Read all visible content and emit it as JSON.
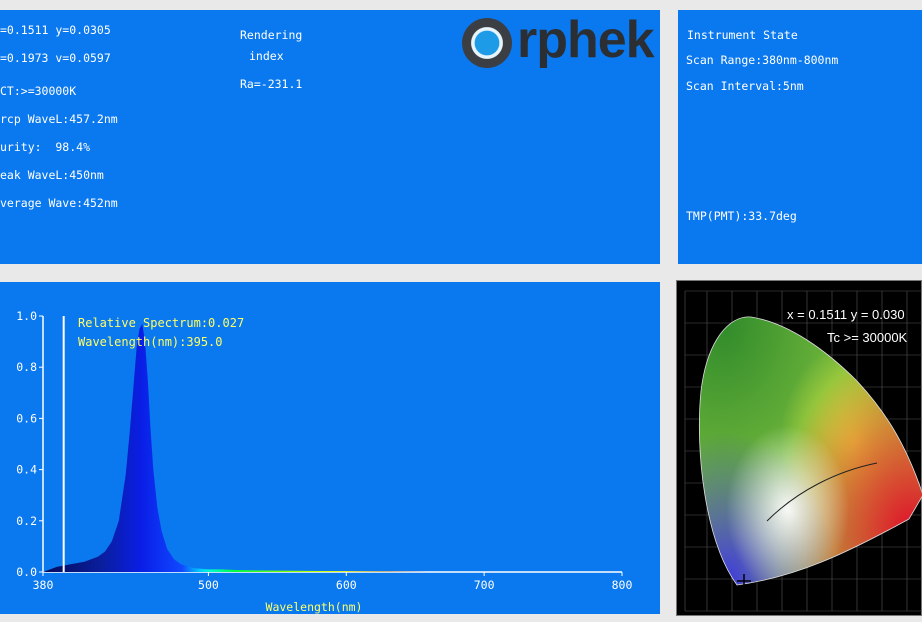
{
  "readout": {
    "xy": "=0.1511 y=0.0305",
    "uv": "=0.1973 v=0.0597",
    "cct": "CT:>=30000K",
    "dominant": "rcp WaveL:457.2nm",
    "purity": "urity:  98.4%",
    "peak": "eak WaveL:450nm",
    "average": "verage Wave:452nm",
    "rendering_label_1": "Rendering",
    "rendering_label_2": "index",
    "ra": "Ra=-231.1"
  },
  "logo": {
    "text": "rphek"
  },
  "instrument_state": {
    "title": "Instrument State",
    "scan_range": "Scan Range:380nm-800nm",
    "scan_interval": "Scan Interval:5nm",
    "temperature": "TMP(PMT):33.7deg"
  },
  "spectrum_panel": {
    "cursor_readout": "Relative Spectrum:0.027",
    "wavelength_readout": "Wavelength(nm):395.0"
  },
  "cie_panel": {
    "xy_text": "x = 0.1511 y = 0.030",
    "tc_text": "Tc >= 30000K"
  },
  "colors": {
    "panel_blue": "#0a78ef",
    "axis_white": "#ffffff",
    "readout_yellow": "#ffff66"
  },
  "chart_data": {
    "type": "area",
    "xlabel": "Wavelength(nm)",
    "ylabel": "",
    "xlim": [
      380,
      800
    ],
    "ylim": [
      0,
      1.0
    ],
    "x_ticks": [
      "380",
      "500",
      "600",
      "700",
      "800"
    ],
    "y_ticks": [
      "0.0",
      "0.2",
      "0.4",
      "0.6",
      "0.8",
      "1.0"
    ],
    "cursor_wavelength": 395.0,
    "series": [
      {
        "x": [
          380,
          390,
          400,
          410,
          420,
          425,
          430,
          435,
          440,
          443,
          446,
          448,
          450,
          452,
          454,
          456,
          458,
          460,
          463,
          466,
          470,
          475,
          480,
          490,
          500,
          510,
          520,
          540,
          560,
          580,
          600,
          620,
          640,
          660,
          700,
          750,
          800
        ],
        "values": [
          0.0,
          0.02,
          0.03,
          0.04,
          0.06,
          0.08,
          0.12,
          0.2,
          0.38,
          0.55,
          0.75,
          0.88,
          0.95,
          0.97,
          0.9,
          0.75,
          0.56,
          0.4,
          0.25,
          0.16,
          0.09,
          0.05,
          0.03,
          0.015,
          0.01,
          0.01,
          0.008,
          0.006,
          0.005,
          0.004,
          0.003,
          0.002,
          0.001,
          0.0,
          0.0,
          0.0,
          0.0
        ]
      }
    ]
  }
}
